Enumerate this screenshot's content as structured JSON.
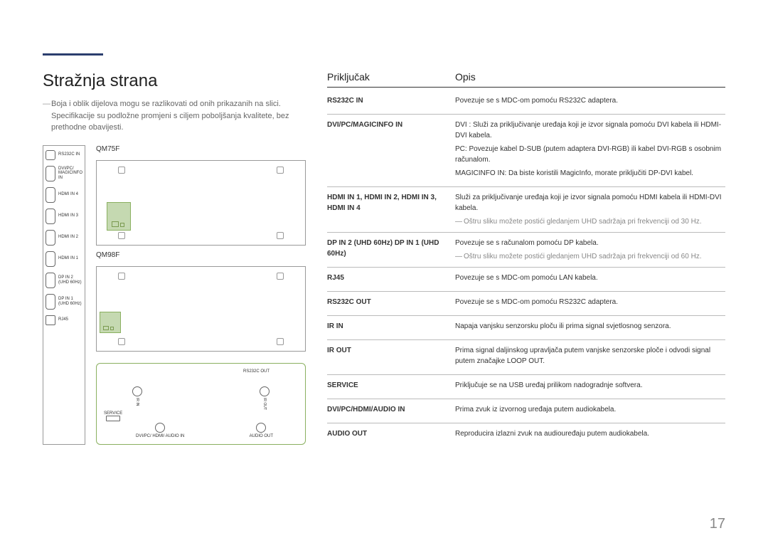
{
  "page_number": "17",
  "heading": "Stražnja strana",
  "intro_note": "Boja i oblik dijelova mogu se razlikovati od onih prikazanih na slici. Specifikacije su podložne promjeni s ciljem poboljšanja kvalitete, bez prethodne obavijesti.",
  "side_ports": [
    {
      "label": "RS232C IN"
    },
    {
      "label": "DVI/PC/ MAGICINFO IN"
    },
    {
      "label": "HDMI IN 4"
    },
    {
      "label": "HDMI IN 3"
    },
    {
      "label": "HDMI IN 2"
    },
    {
      "label": "HDMI IN 1"
    },
    {
      "label": "DP IN 2 (UHD 60Hz)"
    },
    {
      "label": "DP IN 1 (UHD 60Hz)"
    },
    {
      "label": "RJ45"
    }
  ],
  "device_labels": {
    "qm75": "QM75F",
    "qm98": "QM98F"
  },
  "detail_ports": {
    "rs232c_out": "RS232C OUT",
    "ir_in": "IR IN",
    "ir_out": "IR OUT",
    "service": "SERVICE",
    "dvi_audio_in": "DVI/PC/ HDMI/ AUDIO IN",
    "audio_out": "AUDIO OUT"
  },
  "table_headers": {
    "port": "Priključak",
    "desc": "Opis"
  },
  "rows": [
    {
      "port": "RS232C IN",
      "desc": [
        "Povezuje se s MDC-om pomoću RS232C adaptera."
      ]
    },
    {
      "port": "DVI/PC/MAGICINFO IN",
      "desc": [
        "DVI : Služi za priključivanje uređaja koji je izvor signala pomoću DVI kabela ili HDMI-DVI kabela.",
        "PC: Povezuje kabel D-SUB (putem adaptera DVI-RGB) ili kabel DVI-RGB s osobnim računalom.",
        "MAGICINFO IN: Da biste koristili MagicInfo, morate priključiti DP-DVI kabel."
      ]
    },
    {
      "port": "HDMI IN 1, HDMI IN 2, HDMI IN 3, HDMI IN 4",
      "desc": [
        "Služi za priključivanje uređaja koji je izvor signala pomoću HDMI kabela ili HDMI-DVI kabela."
      ],
      "note": "Oštru sliku možete postići gledanjem UHD sadržaja pri frekvenciji od 30 Hz."
    },
    {
      "port": "DP IN 2 (UHD 60Hz) DP IN 1 (UHD 60Hz)",
      "desc": [
        "Povezuje se s računalom pomoću DP kabela."
      ],
      "note": "Oštru sliku možete postići gledanjem UHD sadržaja pri frekvenciji od 60 Hz."
    },
    {
      "port": "RJ45",
      "desc": [
        "Povezuje se s MDC-om pomoću LAN kabela."
      ]
    },
    {
      "port": "RS232C OUT",
      "desc": [
        "Povezuje se s MDC-om pomoću RS232C adaptera."
      ]
    },
    {
      "port": "IR IN",
      "desc": [
        "Napaja vanjsku senzorsku ploču ili prima signal svjetlosnog senzora."
      ]
    },
    {
      "port": "IR OUT",
      "desc": [
        "Prima signal daljinskog upravljača putem vanjske senzorske ploče i odvodi signal putem značajke LOOP OUT."
      ]
    },
    {
      "port": "SERVICE",
      "desc": [
        "Priključuje se na USB uređaj prilikom nadogradnje softvera."
      ]
    },
    {
      "port": "DVI/PC/HDMI/AUDIO IN",
      "desc": [
        "Prima zvuk iz izvornog uređaja putem audiokabela."
      ]
    },
    {
      "port": "AUDIO OUT",
      "desc": [
        "Reproducira izlazni zvuk na audiouređaju putem audiokabela."
      ]
    }
  ]
}
